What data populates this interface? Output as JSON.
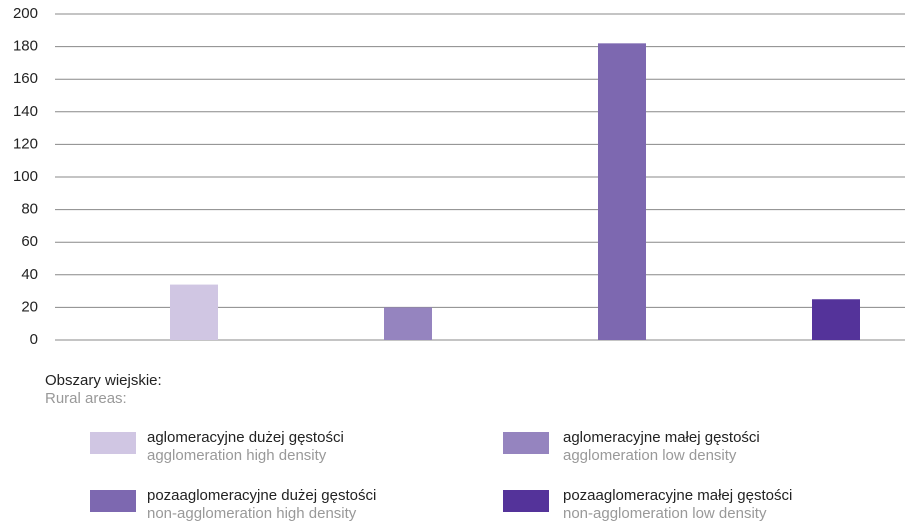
{
  "chart_data": {
    "type": "bar",
    "categories": [
      null,
      null,
      null,
      null
    ],
    "values": [
      34,
      20,
      182,
      25
    ],
    "colors": [
      "#d0c6e3",
      "#9584bf",
      "#7d68b0",
      "#54339a"
    ],
    "ylim": [
      0,
      200
    ],
    "yticks": [
      0,
      20,
      40,
      60,
      80,
      100,
      120,
      140,
      160,
      180,
      200
    ],
    "grid": true,
    "legend_title": "Obszary wiejskie:",
    "legend_subtitle": "Rural areas:",
    "legend": [
      {
        "label": "aglomeracyjne dużej gęstości",
        "sublabel": "agglomeration high density"
      },
      {
        "label": "aglomeracyjne małej gęstości",
        "sublabel": "agglomeration low density"
      },
      {
        "label": "pozaaglomeracyjne dużej gęstości",
        "sublabel": "non-agglomeration high density"
      },
      {
        "label": "pozaaglomeracyjne małej gęstości",
        "sublabel": "non-agglomeration low density"
      }
    ]
  }
}
